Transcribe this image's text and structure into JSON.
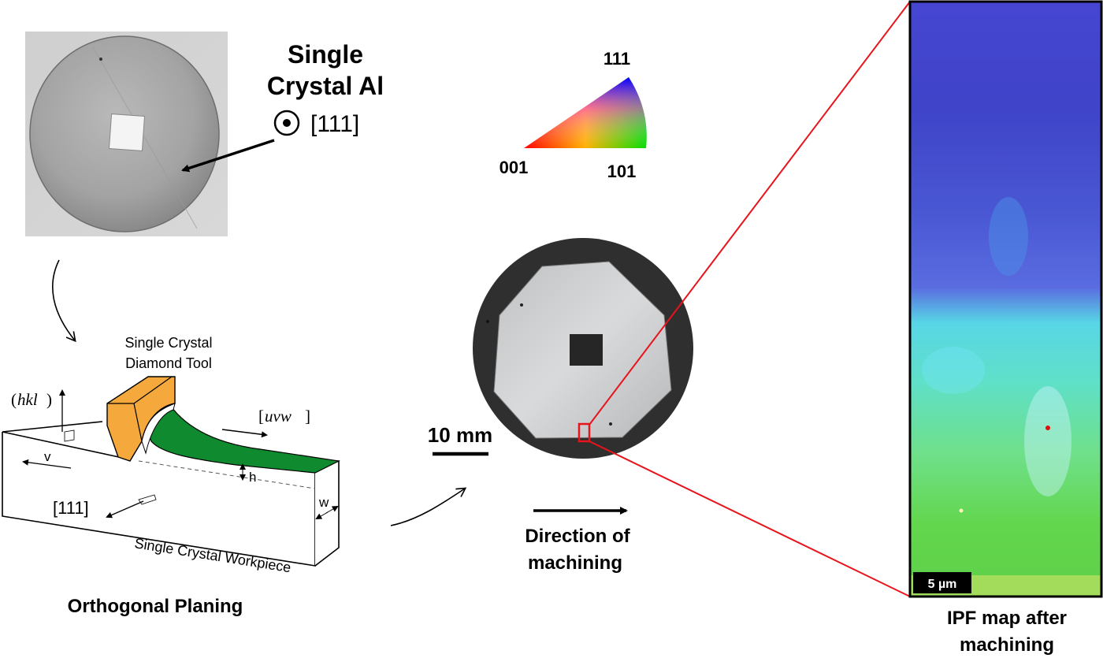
{
  "sample": {
    "title_line1": "Single",
    "title_line2": "Crystal Al",
    "direction": "[111]"
  },
  "ipf_key": {
    "corner_111": "111",
    "corner_001": "001",
    "corner_101": "101"
  },
  "planing": {
    "tool_line1": "Single Crystal",
    "tool_line2": "Diamond Tool",
    "hkl": "hkl",
    "uvw": "uvw",
    "v": "v",
    "h": "h",
    "w": "w",
    "dir_111": "[111]",
    "workpiece": "Single Crystal Workpiece",
    "caption": "Orthogonal Planing"
  },
  "machined": {
    "scale_bar": "10 mm",
    "direction_line1": "Direction of",
    "direction_line2": "machining"
  },
  "ipf_map": {
    "scale_bar": "5 µm",
    "caption_line1": "IPF map after",
    "caption_line2": "machining"
  },
  "colors": {
    "accent_red": "#e8141c",
    "tool_orange": "#f5a93c",
    "chip_green": "#0f8a2e"
  }
}
